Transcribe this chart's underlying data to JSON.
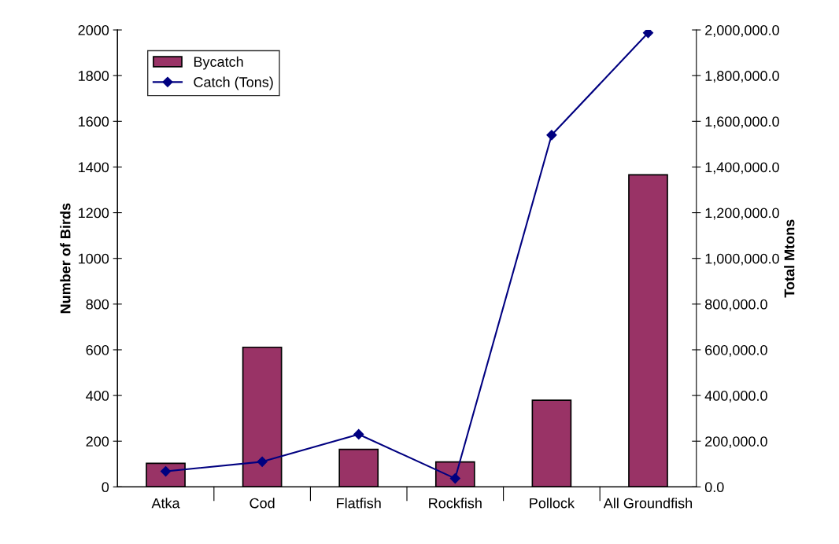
{
  "chart_data": {
    "type": "bar",
    "categories": [
      "Atka",
      "Cod",
      "Flatfish",
      "Rockfish",
      "Pollock",
      "All Groundfish"
    ],
    "ylabel": "Number of Birds",
    "y2label": "Total Mtons",
    "ylim": [
      0,
      2000
    ],
    "yticks": [
      0,
      200,
      400,
      600,
      800,
      1000,
      1200,
      1400,
      1600,
      1800,
      2000
    ],
    "y2lim": [
      0,
      2000000
    ],
    "y2ticks": [
      {
        "value": 0,
        "label": "0.0"
      },
      {
        "value": 200000,
        "label": "200,000.0"
      },
      {
        "value": 400000,
        "label": "400,000.0"
      },
      {
        "value": 600000,
        "label": "600,000.0"
      },
      {
        "value": 800000,
        "label": "800,000.0"
      },
      {
        "value": 1000000,
        "label": "1,000,000.0"
      },
      {
        "value": 1200000,
        "label": "1,200,000.0"
      },
      {
        "value": 1400000,
        "label": "1,400,000.0"
      },
      {
        "value": 1600000,
        "label": "1,600,000.0"
      },
      {
        "value": 1800000,
        "label": "1,800,000.0"
      },
      {
        "value": 2000000,
        "label": "2,000,000.0"
      }
    ],
    "series": [
      {
        "name": "Bycatch",
        "color": "#993366",
        "values": [
          103,
          611,
          164,
          109,
          379,
          1366
        ]
      },
      {
        "name": "Catch (Tons)",
        "type": "line",
        "axis": "y2",
        "color": "#000080",
        "marker": "diamond",
        "values": [
          68000,
          110000,
          230000,
          37000,
          1540000,
          1987000
        ]
      }
    ],
    "legend": "top left",
    "grid": false
  }
}
